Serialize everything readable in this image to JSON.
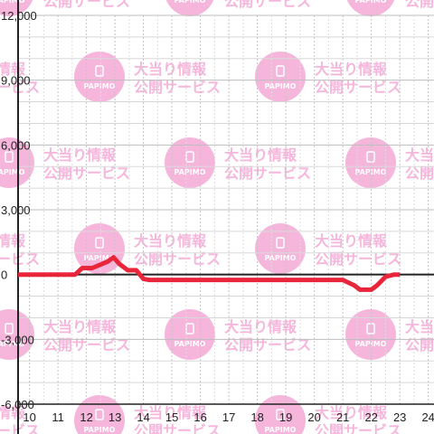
{
  "watermark": {
    "logo_text": "PAPIMO",
    "line1": "大当り情報",
    "line2": "公開サービス",
    "color": "#f6b6dc"
  },
  "chart_data": {
    "type": "line",
    "title": "",
    "xlabel": "",
    "ylabel": "",
    "xlim": [
      9.6,
      24.2
    ],
    "ylim": [
      -6000,
      12000
    ],
    "x_ticks": [
      10,
      11,
      12,
      13,
      14,
      15,
      16,
      17,
      18,
      19,
      20,
      21,
      22,
      23,
      24
    ],
    "x_tick_labels": [
      "10",
      "11",
      "12",
      "13",
      "14",
      "15",
      "16",
      "17",
      "18",
      "19",
      "20",
      "21",
      "22",
      "23",
      "24"
    ],
    "y_ticks": [
      12000,
      9000,
      6000,
      3000,
      0,
      -3000,
      -6000
    ],
    "y_tick_labels": [
      "12,000",
      "9,000",
      "6,000",
      "3,000",
      "0",
      "-3,000",
      "-6,000"
    ],
    "grid": true,
    "series": [
      {
        "color": "#e8253a",
        "x": [
          9.6,
          11.6,
          11.85,
          12.2,
          12.75,
          12.95,
          13.15,
          13.45,
          13.75,
          14.0,
          14.2,
          15.0,
          18.0,
          20.5,
          21.0,
          21.4,
          21.6,
          22.0,
          22.2,
          22.5,
          22.8,
          23.0
        ],
        "y": [
          0,
          0,
          300,
          300,
          600,
          800,
          500,
          200,
          200,
          -200,
          -250,
          -250,
          -250,
          -250,
          -250,
          -500,
          -700,
          -700,
          -500,
          -100,
          0,
          0
        ]
      }
    ]
  }
}
